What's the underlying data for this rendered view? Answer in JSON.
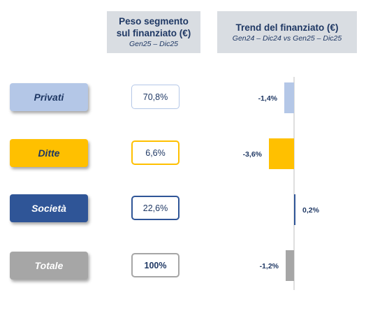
{
  "header_weight": {
    "title": "Peso segmento sul finanziato (€)",
    "subtitle": "Gen25 – Dic25"
  },
  "header_trend": {
    "title": "Trend del finanziato (€)",
    "subtitle": "Gen24 – Dic24 vs Gen25 – Dic25"
  },
  "segments": [
    {
      "name": "Privati",
      "weight": "70,8%",
      "color": "#b4c7e7",
      "text_color": "#1f3864",
      "border": "#b4c7e7"
    },
    {
      "name": "Ditte",
      "weight": "6,6%",
      "color": "#ffc000",
      "text_color": "#1f3864",
      "border": "#ffc000"
    },
    {
      "name": "Società",
      "weight": "22,6%",
      "color": "#2f5597",
      "text_color": "#ffffff",
      "border": "#2f5597"
    },
    {
      "name": "Totale",
      "weight": "100%",
      "color": "#a6a6a6",
      "text_color": "#ffffff",
      "border": "#a6a6a6",
      "bold_weight": true
    }
  ],
  "chart_data": {
    "type": "bar",
    "orientation": "horizontal",
    "title": "Trend del finanziato (€)",
    "subtitle": "Gen24 – Dic24 vs Gen25 – Dic25",
    "categories": [
      "Privati",
      "Ditte",
      "Società",
      "Totale"
    ],
    "values": [
      -1.4,
      -3.6,
      0.2,
      -1.2
    ],
    "labels": [
      "-1,4%",
      "-3,6%",
      "0,2%",
      "-1,2%"
    ],
    "colors": [
      "#b4c7e7",
      "#ffc000",
      "#2f5597",
      "#a6a6a6"
    ],
    "grid": false
  }
}
